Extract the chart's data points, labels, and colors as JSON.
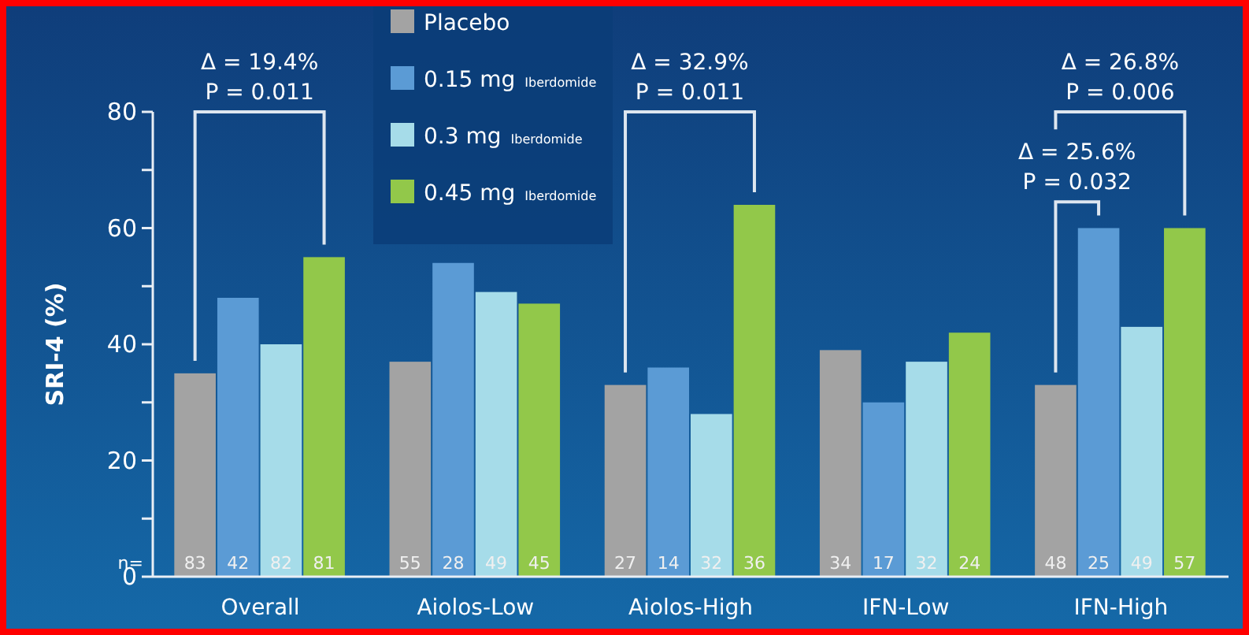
{
  "chart_data": {
    "type": "bar",
    "ylabel": "SRI-4 (%)",
    "categories": [
      "Overall",
      "Aiolos-Low",
      "Aiolos-High",
      "IFN-Low",
      "IFN-High"
    ],
    "series": [
      {
        "name": "Placebo",
        "color": "#a3a3a3",
        "values": [
          35,
          37,
          33,
          39,
          33
        ]
      },
      {
        "name": "0.15 mg Iberdomide",
        "color": "#5b9bd5",
        "values": [
          48,
          54,
          36,
          30,
          60
        ]
      },
      {
        "name": "0.3 mg Iberdomide",
        "color": "#a6dce9",
        "values": [
          40,
          49,
          28,
          37,
          43
        ]
      },
      {
        "name": "0.45 mg Iberdomide",
        "color": "#92c84a",
        "values": [
          55,
          47,
          64,
          42,
          60
        ]
      }
    ],
    "ylim": [
      0,
      80
    ],
    "yticks": [
      0,
      {
        "value": 10,
        "label": null
      },
      20,
      {
        "value": 30,
        "label": null
      },
      40,
      {
        "value": 50,
        "label": null
      },
      60,
      {
        "value": 70,
        "label": null
      },
      80
    ],
    "legend": "top",
    "annotations": [
      "Δ = 19.4%\nP = 0.011",
      "Δ = 32.9%\nP = 0.011",
      "Δ = 25.6%\nP = 0.032",
      "Δ = 26.8%\nP = 0.006",
      "n=",
      "83",
      "42",
      "82",
      "81",
      "55",
      "28",
      "49",
      "45",
      "27",
      "14",
      "32",
      "36",
      "34",
      "17",
      "32",
      "24",
      "48",
      "25",
      "49",
      "57"
    ]
  }
}
